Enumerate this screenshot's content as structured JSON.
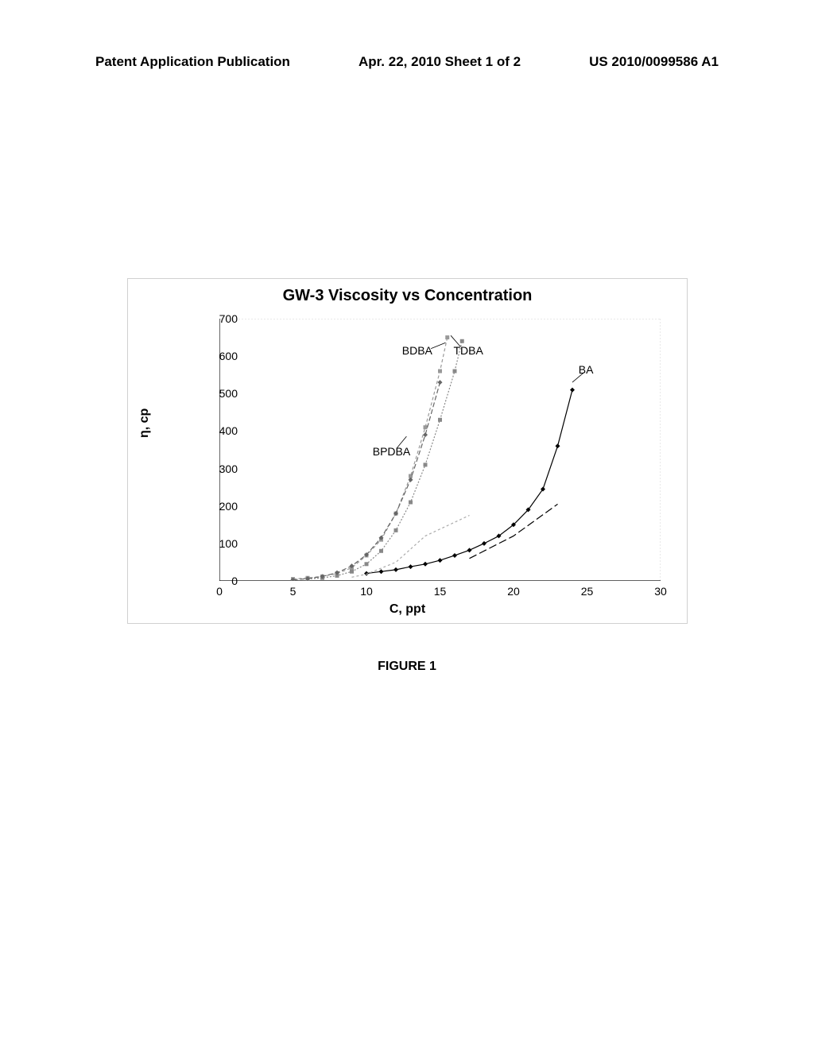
{
  "header": {
    "left": "Patent Application Publication",
    "center": "Apr. 22, 2010  Sheet 1 of 2",
    "right": "US 2010/0099586 A1"
  },
  "chart": {
    "title": "GW-3 Viscosity vs Concentration",
    "type": "line",
    "xlabel": "C, ppt",
    "ylabel": "η, cp",
    "xlim": [
      0,
      30
    ],
    "ylim": [
      0,
      700
    ],
    "xtick_step": 5,
    "ytick_step": 100,
    "xticks": [
      0,
      5,
      10,
      15,
      20,
      25,
      30
    ],
    "yticks": [
      0,
      100,
      200,
      300,
      400,
      500,
      600,
      700
    ],
    "background_color": "#ffffff",
    "grid_color": "#d0d0d0",
    "axis_color": "#000000",
    "tick_fontsize": 14,
    "label_fontsize": 16,
    "title_fontsize": 20,
    "series": {
      "BDBA": {
        "color": "#999999",
        "dash": "4,3",
        "marker": "square",
        "marker_color": "#999999",
        "label_x": 13.5,
        "label_y": 615,
        "points": [
          [
            5,
            5
          ],
          [
            6,
            8
          ],
          [
            7,
            12
          ],
          [
            8,
            20
          ],
          [
            9,
            35
          ],
          [
            10,
            68
          ],
          [
            11,
            110
          ],
          [
            12,
            180
          ],
          [
            13,
            280
          ],
          [
            14,
            410
          ],
          [
            15,
            560
          ],
          [
            15.5,
            650
          ]
        ]
      },
      "TDBA": {
        "color": "#888888",
        "dash": "2,2",
        "marker": "square",
        "marker_color": "#888888",
        "label_x": 17,
        "label_y": 615,
        "points": [
          [
            6,
            5
          ],
          [
            7,
            8
          ],
          [
            8,
            14
          ],
          [
            9,
            25
          ],
          [
            10,
            45
          ],
          [
            11,
            80
          ],
          [
            12,
            135
          ],
          [
            13,
            210
          ],
          [
            14,
            310
          ],
          [
            15,
            430
          ],
          [
            16,
            560
          ],
          [
            16.5,
            640
          ]
        ]
      },
      "BPDBA": {
        "color": "#666666",
        "dash": "6,3",
        "marker": "diamond",
        "marker_color": "#666666",
        "label_x": 11.5,
        "label_y": 345,
        "points": [
          [
            5,
            3
          ],
          [
            6,
            6
          ],
          [
            7,
            12
          ],
          [
            8,
            22
          ],
          [
            9,
            40
          ],
          [
            10,
            70
          ],
          [
            11,
            115
          ],
          [
            12,
            180
          ],
          [
            13,
            270
          ],
          [
            14,
            390
          ],
          [
            15,
            530
          ]
        ]
      },
      "BA": {
        "color": "#000000",
        "dash": "none",
        "marker": "diamond",
        "marker_color": "#000000",
        "label_x": 25.5,
        "label_y": 565,
        "points": [
          [
            10,
            20
          ],
          [
            11,
            25
          ],
          [
            12,
            30
          ],
          [
            13,
            38
          ],
          [
            14,
            45
          ],
          [
            15,
            55
          ],
          [
            16,
            68
          ],
          [
            17,
            82
          ],
          [
            18,
            100
          ],
          [
            19,
            120
          ],
          [
            20,
            150
          ],
          [
            21,
            190
          ],
          [
            22,
            245
          ],
          [
            23,
            360
          ],
          [
            24,
            510
          ]
        ]
      },
      "extra1": {
        "color": "#aaaaaa",
        "dash": "3,3",
        "marker": "none",
        "points": [
          [
            9,
            10
          ],
          [
            10,
            18
          ],
          [
            12,
            50
          ],
          [
            14,
            120
          ],
          [
            17,
            175
          ]
        ]
      },
      "extra2": {
        "color": "#000000",
        "dash": "10,4",
        "marker": "none",
        "points": [
          [
            17,
            60
          ],
          [
            20,
            120
          ],
          [
            23,
            205
          ]
        ]
      }
    }
  },
  "caption": "FIGURE 1"
}
